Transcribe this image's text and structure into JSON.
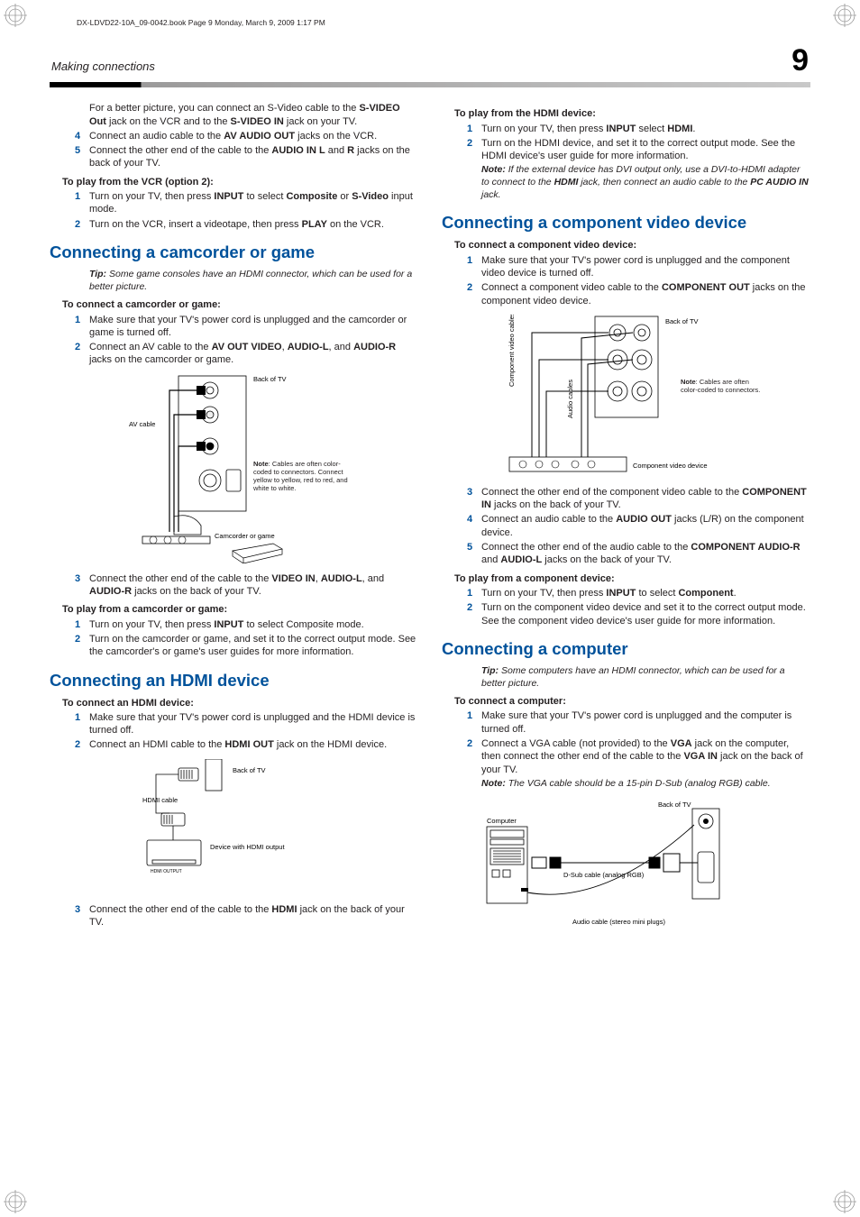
{
  "colors": {
    "accent": "#00529b",
    "text": "#231f20",
    "rule_dark": "#000000",
    "rule_light": "#c9c9c9"
  },
  "print_header": "DX-LDVD22-10A_09-0042.book  Page 9  Monday, March 9, 2009  1:17 PM",
  "header": {
    "section": "Making connections",
    "page_number": "9"
  },
  "left": {
    "intro_para": "For a better picture, you can connect an S-Video cable to the <b>S-VIDEO Out</b> jack on the VCR and to the <b>S-VIDEO IN</b> jack on your TV.",
    "steps_cont": [
      "Connect an audio cable to the <b>AV AUDIO OUT</b> jacks on the VCR.",
      "Connect the other end of the cable to the <b>AUDIO IN L</b> and <b>R</b> jacks on the back of your TV."
    ],
    "steps_cont_start": 4,
    "vcr_play_head": "To play from the VCR (option 2):",
    "vcr_play_steps": [
      "Turn on your TV, then press <b>INPUT</b> to select <b>Composite</b> or <b>S-Video</b> input mode.",
      "Turn on the VCR, insert a videotape, then press <b>PLAY</b> on the VCR."
    ],
    "h_camcorder": "Connecting a camcorder or game",
    "tip_camcorder": "Some game consoles have an HDMI connector, which can be used for a better picture.",
    "cam_connect_head": "To connect a camcorder or game:",
    "cam_connect_steps": [
      "Make sure that your TV's power cord is unplugged and the camcorder or game is turned off.",
      "Connect an AV cable to the <b>AV OUT VIDEO</b>, <b>AUDIO-L</b>, and <b>AUDIO-R</b> jacks on the camcorder or game."
    ],
    "fig1": {
      "back_of_tv": "Back of TV",
      "av_cable": "AV cable",
      "note": "<b>Note</b>: Cables are often color-coded to connectors. Connect yellow to yellow, red to red, and white to white.",
      "camcorder": "Camcorder or game"
    },
    "cam_step3": "Connect the other end of the cable to the <b>VIDEO IN</b>, <b>AUDIO-L</b>, and <b>AUDIO-R</b> jacks on the back of your TV.",
    "cam_play_head": "To play from a camcorder or game:",
    "cam_play_steps": [
      "Turn on your TV, then press <b>INPUT</b> to select Composite mode.",
      "Turn on the camcorder or game, and set it to the correct output mode. See the camcorder's or game's user guides for more information."
    ],
    "h_hdmi": "Connecting an HDMI device",
    "hdmi_connect_head": "To connect an HDMI device:",
    "hdmi_connect_steps": [
      "Make sure that your TV's power cord is unplugged and the HDMI device is turned off.",
      "Connect an HDMI cable to the <b>HDMI OUT</b> jack on the HDMI device."
    ],
    "fig2": {
      "back_of_tv": "Back of TV",
      "hdmi_cable": "HDMI cable",
      "device": "Device with HDMI output"
    },
    "hdmi_step3": "Connect the other end of the cable to the <b>HDMI</b> jack on the back of your TV."
  },
  "right": {
    "hdmi_play_head": "To play from the HDMI device:",
    "hdmi_play_steps": [
      "Turn on your TV, then press <b>INPUT</b> select <b>HDMI</b>.",
      "Turn on the HDMI device, and set it to the correct output mode. See the HDMI device's user guide for more information."
    ],
    "hdmi_note": "If the external device has DVI output only, use a DVI-to-HDMI adapter to connect to the <b>HDMI</b> jack, then connect an audio cable to the <b>PC AUDIO IN</b> jack.",
    "h_component": "Connecting a component video device",
    "comp_connect_head": "To connect a component video device:",
    "comp_connect_steps": [
      "Make sure that your TV's power cord is unplugged and the component video device is turned off.",
      "Connect a component video cable to the <b>COMPONENT OUT</b> jacks on the component video device."
    ],
    "fig3": {
      "back_of_tv": "Back of TV",
      "comp_cables": "Component video cables",
      "audio_cables": "Audio cables",
      "note": "<b>Note</b>: Cables are often color-coded to connectors.",
      "device": "Component video device"
    },
    "comp_steps_rest": [
      "Connect the other end of the component video cable to the <b>COMPONENT IN</b> jacks on the back of your TV.",
      "Connect an audio cable to the <b>AUDIO OUT</b> jacks (L/R) on the component device.",
      "Connect the other end of the audio cable to the <b>COMPONENT AUDIO-R</b> and <b>AUDIO-L</b> jacks on the back of your TV."
    ],
    "comp_steps_rest_start": 3,
    "comp_play_head": "To play from a component device:",
    "comp_play_steps": [
      "Turn on your TV, then press <b>INPUT</b> to select <b>Component</b>.",
      "Turn on the component video device and set it to the correct output mode. See the component video device's user guide for more information."
    ],
    "h_computer": "Connecting a computer",
    "tip_computer": "Some computers have an HDMI connector, which can be used for a better picture.",
    "pc_connect_head": "To connect a computer:",
    "pc_connect_steps": [
      "Make sure that your TV's power cord is unplugged and the computer is turned off.",
      "Connect a VGA cable (not provided) to the <b>VGA</b> jack on the computer, then connect the other end of the cable to the <b>VGA IN</b> jack on the back of your TV."
    ],
    "pc_note": "The VGA cable should be a 15-pin D-Sub (analog RGB) cable.",
    "fig4": {
      "back_of_tv": "Back of TV",
      "computer": "Computer",
      "dsub": "D-Sub cable (analog RGB)",
      "audio": "Audio cable (stereo mini plugs)"
    }
  }
}
